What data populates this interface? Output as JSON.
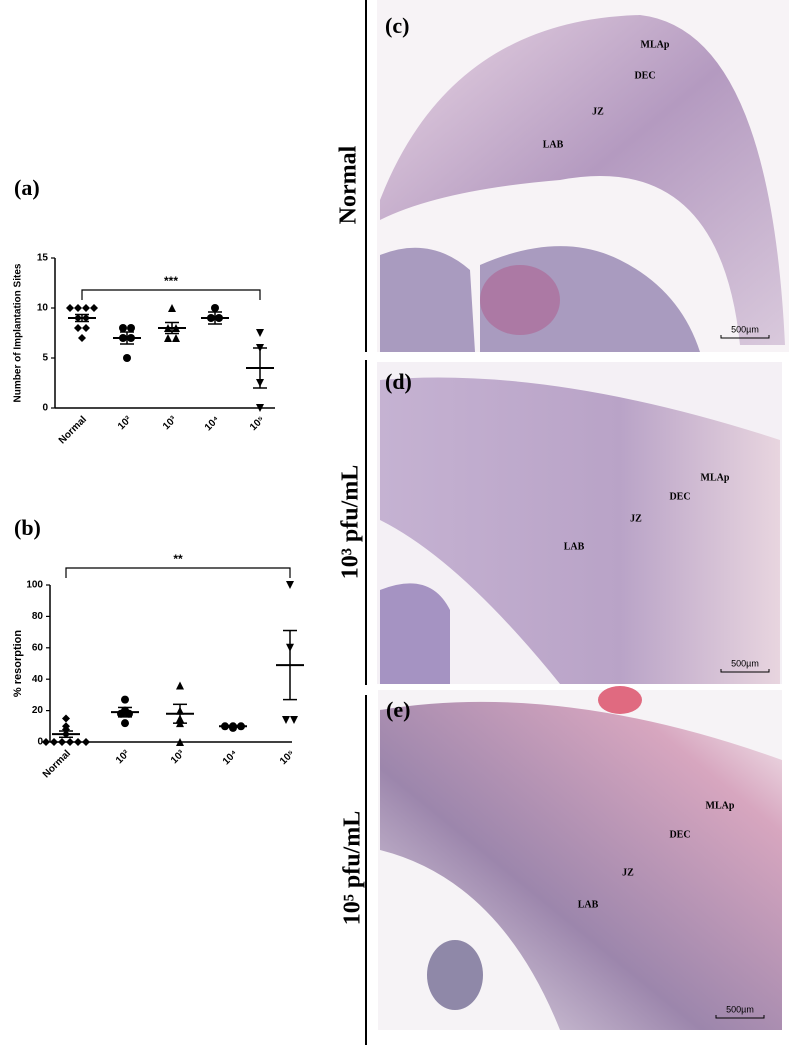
{
  "chart_data": [
    {
      "type": "dotplot",
      "title": "(a)",
      "ylabel": "Number of Implantation Sites",
      "categories": [
        "Normal",
        "10²",
        "10³",
        "10⁴",
        "10⁵"
      ],
      "markers": [
        "diamond",
        "circle",
        "triangle",
        "circle",
        "triangle-down"
      ],
      "points": [
        [
          10,
          10,
          10,
          10,
          9,
          9,
          8,
          8,
          7
        ],
        [
          8,
          8,
          7,
          7,
          5
        ],
        [
          10,
          8,
          8,
          7,
          7
        ],
        [
          10,
          9,
          9
        ],
        [
          7.5,
          6,
          2.5,
          0
        ]
      ],
      "mean": [
        9,
        7,
        8,
        9,
        4
      ],
      "sem": [
        0.35,
        0.6,
        0.55,
        0.6,
        2
      ],
      "ylim": [
        0,
        15
      ],
      "yticks": [
        0,
        5,
        10,
        15
      ],
      "significance": "***",
      "color": "#000000"
    },
    {
      "type": "dotplot",
      "title": "(b)",
      "ylabel": "% resorption",
      "categories": [
        "Normal",
        "10²",
        "10³",
        "10⁴",
        "10⁵"
      ],
      "markers": [
        "diamond",
        "circle",
        "triangle",
        "circle",
        "triangle-down"
      ],
      "points": [
        [
          15,
          10,
          8,
          5,
          0,
          0,
          0,
          0,
          0,
          0
        ],
        [
          27,
          20,
          18,
          18,
          12
        ],
        [
          36,
          20,
          15,
          12,
          0
        ],
        [
          10,
          10,
          10,
          9
        ],
        [
          100,
          60,
          14,
          14
        ]
      ],
      "mean": [
        5,
        19,
        18,
        10,
        49
      ],
      "sem": [
        2,
        3,
        6,
        0.5,
        22
      ],
      "ylim": [
        0,
        100
      ],
      "yticks": [
        0,
        20,
        40,
        60,
        80,
        100
      ],
      "significance": "**",
      "color": "#000000"
    }
  ],
  "panels": [
    {
      "label": "(c)",
      "condition": "Normal",
      "regions": [
        "MLAp",
        "DEC",
        "JZ",
        "LAB"
      ],
      "scale_bar": "500µm"
    },
    {
      "label": "(d)",
      "condition": "10³ pfu/mL",
      "regions": [
        "MLAp",
        "DEC",
        "JZ",
        "LAB"
      ],
      "scale_bar": "500µm"
    },
    {
      "label": "(e)",
      "condition": "10⁵ pfu/mL",
      "regions": [
        "MLAp",
        "DEC",
        "JZ",
        "LAB"
      ],
      "scale_bar": "500µm"
    }
  ]
}
